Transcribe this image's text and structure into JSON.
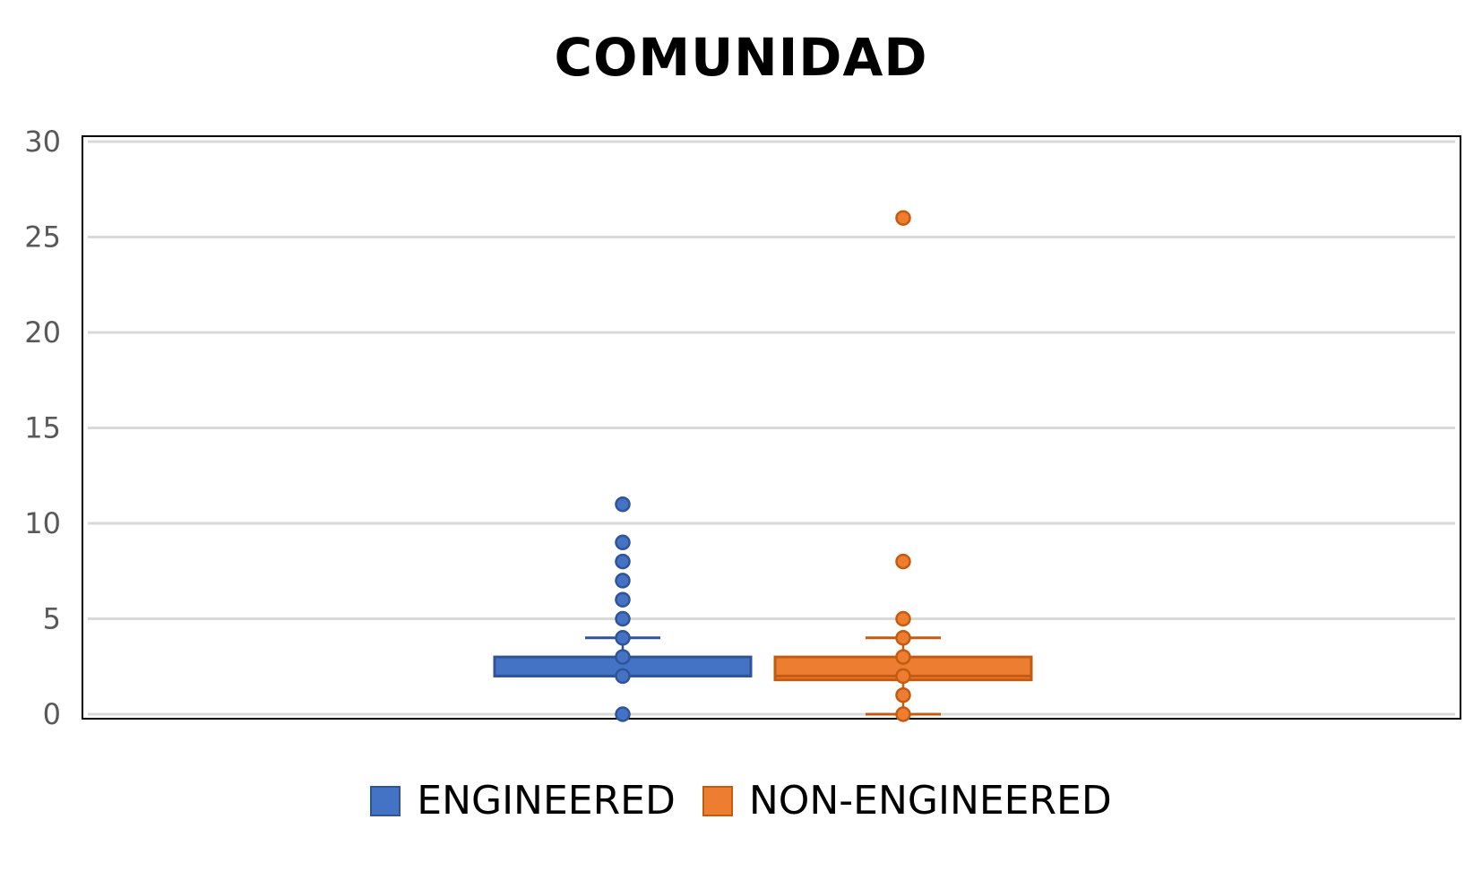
{
  "chart_data": {
    "type": "box",
    "title": "COMUNIDAD",
    "xlabel": "",
    "ylabel": "",
    "ylim": [
      0,
      30
    ],
    "yticks": [
      0,
      5,
      10,
      15,
      20,
      25,
      30
    ],
    "grid": true,
    "legend_position": "bottom",
    "series": [
      {
        "name": "ENGINEERED",
        "color": "#4472C4",
        "edge_color": "#2F5597",
        "q1": 2,
        "median": 2,
        "q3": 3,
        "whisker_low": 2,
        "whisker_high": 4,
        "points": [
          0,
          2,
          3,
          4,
          5,
          6,
          7,
          8,
          9,
          11
        ]
      },
      {
        "name": "NON-ENGINEERED",
        "color": "#ED7D31",
        "edge_color": "#C55A11",
        "q1": 1.8,
        "median": 2,
        "q3": 3,
        "whisker_low": 0,
        "whisker_high": 4,
        "points": [
          0,
          1,
          2,
          3,
          4,
          5,
          8,
          26
        ]
      }
    ]
  }
}
